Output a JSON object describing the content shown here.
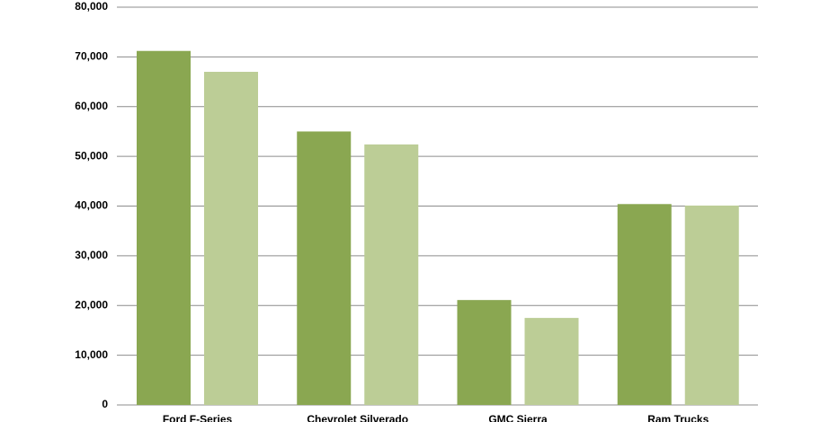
{
  "chart_data": {
    "type": "bar",
    "categories": [
      "Ford F-Series",
      "Chevrolet Silverado",
      "GMC Sierra",
      "Ram Trucks"
    ],
    "series": [
      {
        "color": "#8aa751",
        "values": [
          71200,
          55000,
          21100,
          40400
        ]
      },
      {
        "color": "#bccd96",
        "values": [
          67000,
          52400,
          17500,
          40100
        ]
      }
    ],
    "ylim": [
      0,
      80000
    ],
    "yticks": [
      0,
      {
        "value": 10000,
        "label": "10,000"
      },
      {
        "value": 20000,
        "label": "20,000"
      },
      {
        "value": 30000,
        "label": "30,000"
      },
      {
        "value": 40000,
        "label": "40,000"
      },
      {
        "value": 50000,
        "label": "50,000"
      },
      {
        "value": 60000,
        "label": "60,000"
      },
      {
        "value": 70000,
        "label": "70,000"
      },
      {
        "value": 80000,
        "label": "80,000"
      }
    ],
    "grid": true
  }
}
